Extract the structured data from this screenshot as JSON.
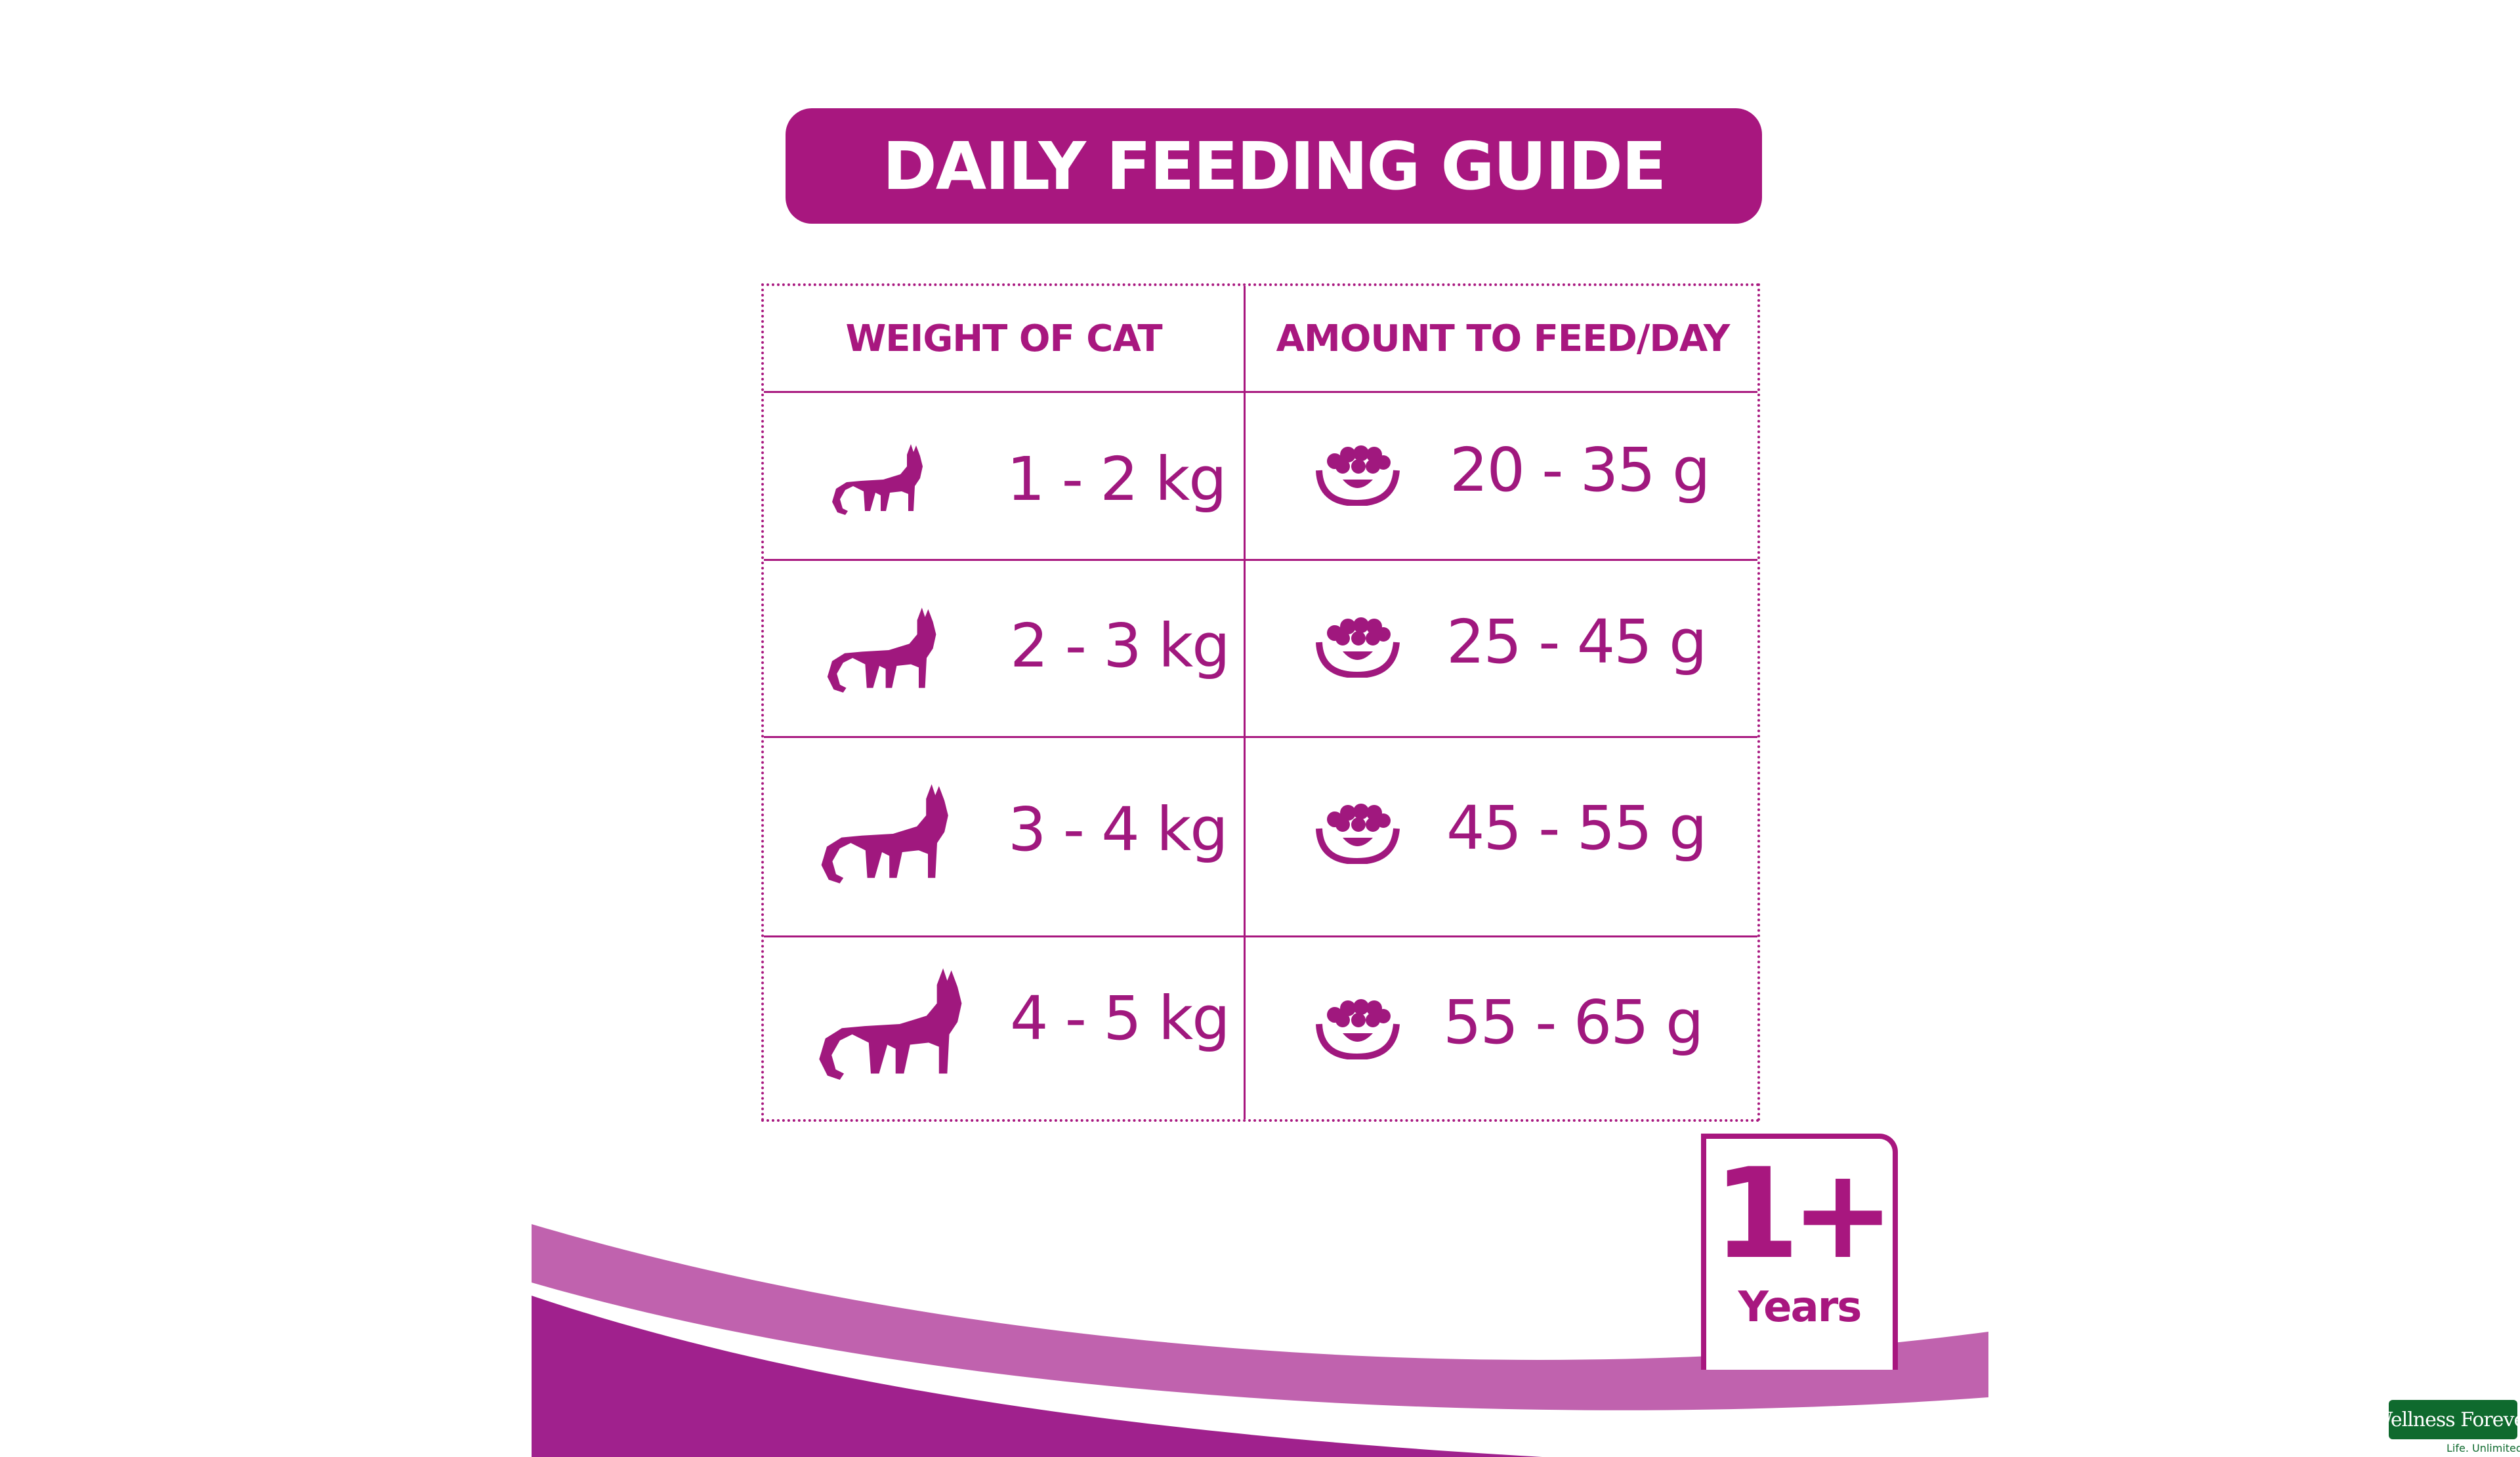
{
  "title": "DAILY FEEDING GUIDE",
  "table": {
    "headers": [
      "WEIGHT OF CAT",
      "AMOUNT TO FEED/DAY"
    ],
    "rows": [
      {
        "weight": "1 - 2 kg",
        "amount": "20 - 35 g"
      },
      {
        "weight": "2 - 3 kg",
        "amount": "25 - 45 g"
      },
      {
        "weight": "3 - 4 kg",
        "amount": "45 - 55 g"
      },
      {
        "weight": "4 - 5 kg",
        "amount": "55 - 65 g"
      }
    ],
    "icons": {
      "weight": "cat-silhouette-icon",
      "amount": "food-bowl-icon"
    }
  },
  "badge": {
    "main": "1+",
    "sub": "Years"
  },
  "logo": {
    "name": "Wellness Forever",
    "tagline": "Life. Unlimited."
  },
  "colors": {
    "brand": "#a8177f",
    "swoosh_light": "#c062ae",
    "logo_green": "#0f6a2e"
  }
}
